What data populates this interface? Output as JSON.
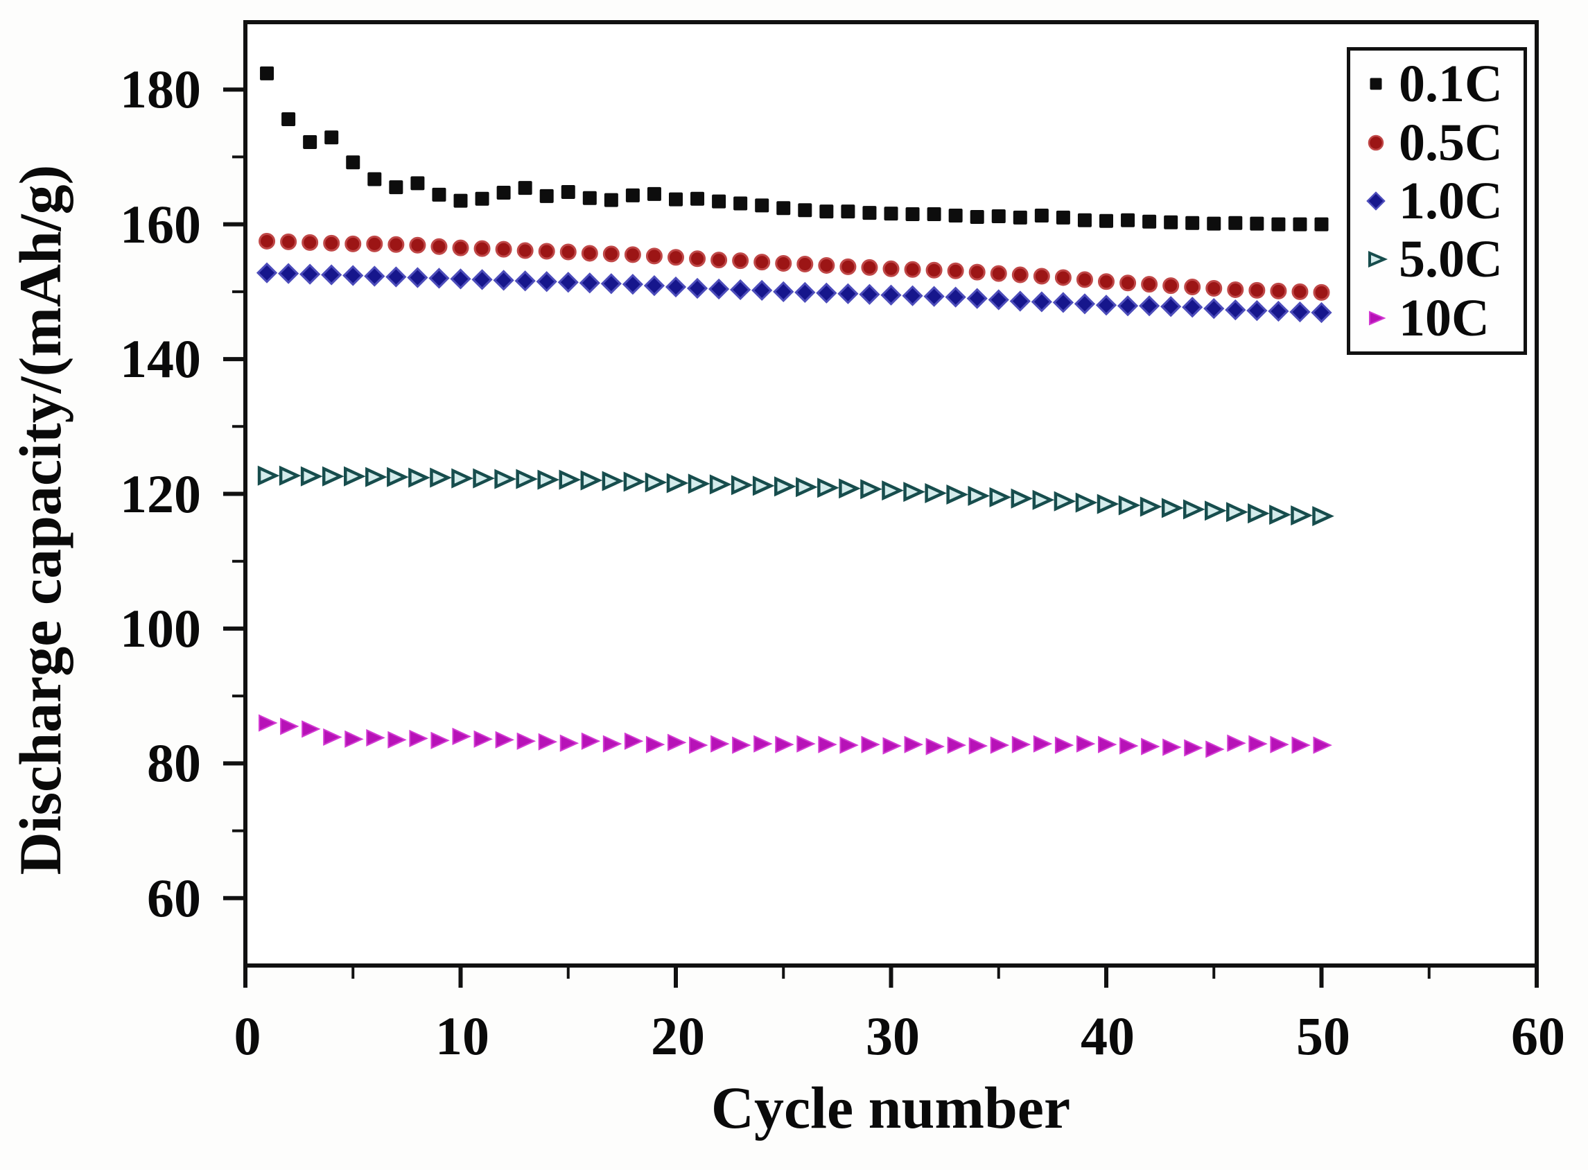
{
  "figure": {
    "x_axis_title": "Cycle number",
    "y_axis_title": "Discharge capacity/(mAh/g)"
  },
  "legend": {
    "position": "top-right",
    "items": [
      "0.1C",
      "0.5C",
      "1.0C",
      "5.0C",
      "10C"
    ]
  },
  "chart_data": {
    "type": "scatter",
    "title": "",
    "xlabel": "Cycle number",
    "ylabel": "Discharge capacity/(mAh/g)",
    "xlim": [
      0,
      60
    ],
    "ylim": [
      50,
      190
    ],
    "grid": false,
    "legend_position": "top-right",
    "x_ticks": [
      0,
      10,
      20,
      30,
      40,
      50,
      60
    ],
    "y_ticks": [
      180,
      160,
      140,
      120,
      100,
      80,
      60
    ],
    "x_minor_ticks": [
      5,
      15,
      25,
      35,
      45,
      55
    ],
    "y_minor_ticks": [
      70,
      90,
      110,
      130,
      150,
      170
    ],
    "cycles": [
      1,
      2,
      3,
      4,
      5,
      6,
      7,
      8,
      9,
      10,
      11,
      12,
      13,
      14,
      15,
      16,
      17,
      18,
      19,
      20,
      21,
      22,
      23,
      24,
      25,
      26,
      27,
      28,
      29,
      30,
      31,
      32,
      33,
      34,
      35,
      36,
      37,
      38,
      39,
      40,
      41,
      42,
      43,
      44,
      45,
      46,
      47,
      48,
      49,
      50
    ],
    "series": [
      {
        "name": "0.1C",
        "marker": "square",
        "color": "#0d0d0d",
        "edge": "#0d0d0d",
        "values": [
          182.4,
          175.6,
          172.2,
          172.9,
          169.2,
          166.7,
          165.5,
          166.1,
          164.4,
          163.5,
          163.8,
          164.7,
          165.4,
          164.2,
          164.8,
          163.9,
          163.6,
          164.3,
          164.5,
          163.7,
          163.8,
          163.4,
          163.1,
          162.8,
          162.4,
          162.1,
          161.9,
          161.9,
          161.7,
          161.6,
          161.5,
          161.5,
          161.3,
          161.1,
          161.2,
          161.0,
          161.3,
          161.0,
          160.6,
          160.5,
          160.6,
          160.4,
          160.3,
          160.2,
          160.1,
          160.2,
          160.1,
          160.0,
          160.0,
          160.0
        ]
      },
      {
        "name": "0.5C",
        "marker": "circle",
        "color": "#9c1515",
        "edge": "#c04848",
        "values": [
          157.5,
          157.4,
          157.3,
          157.2,
          157.1,
          157.1,
          157.0,
          156.9,
          156.7,
          156.5,
          156.4,
          156.3,
          156.1,
          156.0,
          155.9,
          155.7,
          155.6,
          155.5,
          155.3,
          155.1,
          154.9,
          154.7,
          154.6,
          154.4,
          154.2,
          154.1,
          153.9,
          153.7,
          153.6,
          153.4,
          153.3,
          153.2,
          153.1,
          152.9,
          152.7,
          152.5,
          152.3,
          152.1,
          151.8,
          151.5,
          151.3,
          151.1,
          150.9,
          150.7,
          150.5,
          150.3,
          150.2,
          150.1,
          150.0,
          149.9
        ]
      },
      {
        "name": "1.0C",
        "marker": "diamond",
        "color": "#16168c",
        "edge": "#4d4dbb",
        "values": [
          152.8,
          152.7,
          152.6,
          152.5,
          152.4,
          152.3,
          152.2,
          152.1,
          152.0,
          151.9,
          151.8,
          151.7,
          151.6,
          151.5,
          151.4,
          151.3,
          151.2,
          151.1,
          150.9,
          150.7,
          150.5,
          150.4,
          150.3,
          150.2,
          150.0,
          149.9,
          149.8,
          149.7,
          149.6,
          149.5,
          149.4,
          149.3,
          149.2,
          149.0,
          148.8,
          148.6,
          148.5,
          148.4,
          148.2,
          148.0,
          147.9,
          147.9,
          147.8,
          147.7,
          147.5,
          147.3,
          147.2,
          147.1,
          147.0,
          146.9
        ]
      },
      {
        "name": "5.0C",
        "marker": "triangle-right",
        "color": "#d4ecec",
        "edge": "#174d4d",
        "values": [
          122.7,
          122.7,
          122.6,
          122.6,
          122.6,
          122.5,
          122.5,
          122.4,
          122.4,
          122.3,
          122.3,
          122.2,
          122.2,
          122.1,
          122.1,
          122.0,
          121.9,
          121.8,
          121.7,
          121.6,
          121.5,
          121.4,
          121.3,
          121.2,
          121.1,
          121.0,
          120.9,
          120.8,
          120.7,
          120.5,
          120.3,
          120.1,
          119.9,
          119.7,
          119.5,
          119.3,
          119.1,
          118.9,
          118.7,
          118.5,
          118.3,
          118.1,
          117.9,
          117.7,
          117.5,
          117.3,
          117.1,
          116.9,
          116.8,
          116.7
        ]
      },
      {
        "name": "10C",
        "marker": "triangle-right",
        "color": "#b712b7",
        "edge": "#d23ad2",
        "values": [
          86.0,
          85.5,
          85.1,
          83.9,
          83.6,
          83.8,
          83.5,
          83.7,
          83.4,
          84.0,
          83.6,
          83.5,
          83.3,
          83.2,
          83.0,
          83.3,
          82.9,
          83.3,
          82.8,
          83.1,
          82.7,
          82.9,
          82.7,
          82.9,
          82.8,
          82.9,
          82.8,
          82.7,
          82.8,
          82.6,
          82.8,
          82.5,
          82.7,
          82.6,
          82.7,
          82.8,
          82.9,
          82.7,
          82.9,
          82.8,
          82.6,
          82.5,
          82.4,
          82.3,
          82.1,
          83.0,
          82.9,
          82.8,
          82.7,
          82.7
        ]
      }
    ]
  }
}
